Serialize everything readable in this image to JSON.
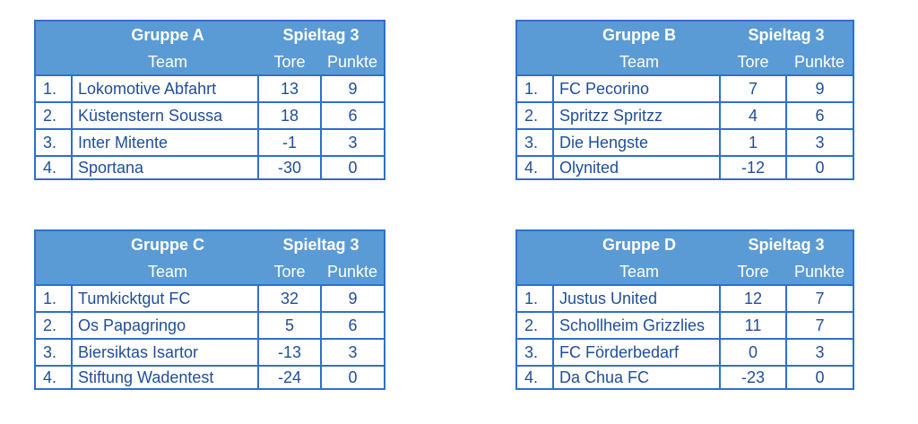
{
  "groups": [
    {
      "title": "Gruppe A",
      "matchday": "Spieltag 3",
      "col_team": "Team",
      "col_goals": "Tore",
      "col_points": "Punkte",
      "rows": [
        {
          "rank": "1.",
          "team": "Lokomotive Abfahrt",
          "goals": "13",
          "points": "9"
        },
        {
          "rank": "2.",
          "team": "Küstenstern Soussa",
          "goals": "18",
          "points": "6"
        },
        {
          "rank": "3.",
          "team": "Inter Mitente",
          "goals": "-1",
          "points": "3"
        },
        {
          "rank": "4.",
          "team": "Sportana",
          "goals": "-30",
          "points": "0"
        }
      ]
    },
    {
      "title": "Gruppe B",
      "matchday": "Spieltag 3",
      "col_team": "Team",
      "col_goals": "Tore",
      "col_points": "Punkte",
      "rows": [
        {
          "rank": "1.",
          "team": "FC Pecorino",
          "goals": "7",
          "points": "9"
        },
        {
          "rank": "2.",
          "team": "Spritzz Spritzz",
          "goals": "4",
          "points": "6"
        },
        {
          "rank": "3.",
          "team": "Die Hengste",
          "goals": "1",
          "points": "3"
        },
        {
          "rank": "4.",
          "team": "Olynited",
          "goals": "-12",
          "points": "0"
        }
      ]
    },
    {
      "title": "Gruppe C",
      "matchday": "Spieltag 3",
      "col_team": "Team",
      "col_goals": "Tore",
      "col_points": "Punkte",
      "rows": [
        {
          "rank": "1.",
          "team": "Tumkicktgut FC",
          "goals": "32",
          "points": "9"
        },
        {
          "rank": "2.",
          "team": "Os Papagringo",
          "goals": "5",
          "points": "6"
        },
        {
          "rank": "3.",
          "team": "Biersiktas Isartor",
          "goals": "-13",
          "points": "3"
        },
        {
          "rank": "4.",
          "team": "Stiftung Wadentest",
          "goals": "-24",
          "points": "0"
        }
      ]
    },
    {
      "title": "Gruppe D",
      "matchday": "Spieltag 3",
      "col_team": "Team",
      "col_goals": "Tore",
      "col_points": "Punkte",
      "rows": [
        {
          "rank": "1.",
          "team": "Justus United",
          "goals": "12",
          "points": "7"
        },
        {
          "rank": "2.",
          "team": "Schollheim Grizzlies",
          "goals": "11",
          "points": "7"
        },
        {
          "rank": "3.",
          "team": "FC Förderbedarf",
          "goals": "0",
          "points": "3"
        },
        {
          "rank": "4.",
          "team": "Da Chua FC",
          "goals": "-23",
          "points": "0"
        }
      ]
    }
  ],
  "colors": {
    "header_bg": "#5b9bd5",
    "border": "#2e6fd0",
    "text": "#1f4e9c"
  }
}
